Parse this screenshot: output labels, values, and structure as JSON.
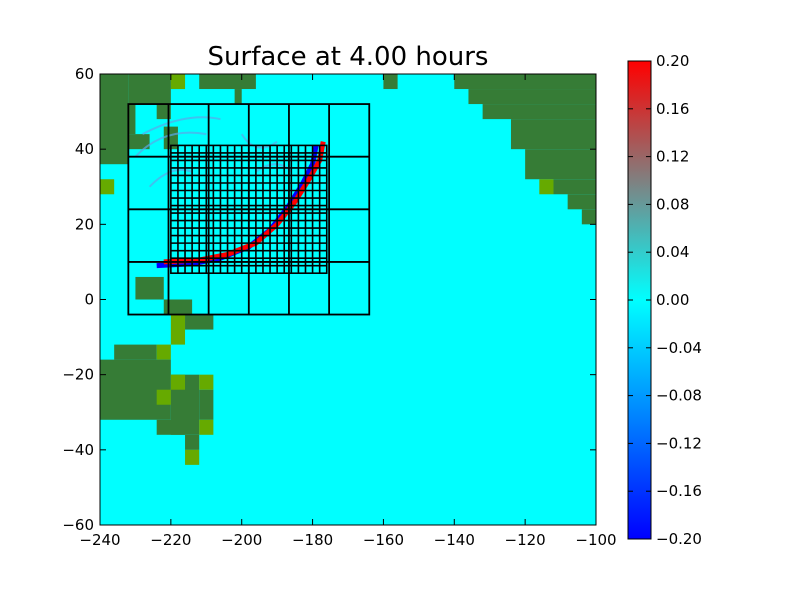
{
  "chart_data": {
    "type": "heatmap",
    "title": "Surface at 4.00 hours",
    "xlabel": "",
    "ylabel": "",
    "xlim": [
      -240,
      -100
    ],
    "ylim": [
      -60,
      60
    ],
    "xticks": [
      -240,
      -220,
      -200,
      -180,
      -160,
      -140,
      -120,
      -100
    ],
    "yticks": [
      -60,
      -40,
      -20,
      0,
      20,
      40,
      60
    ],
    "xtick_labels": [
      "−240",
      "−220",
      "−200",
      "−180",
      "−160",
      "−140",
      "−120",
      "−100"
    ],
    "ytick_labels": [
      "−60",
      "−40",
      "−20",
      "0",
      "20",
      "40",
      "60"
    ],
    "colorbar": {
      "vmin": -0.2,
      "vmax": 0.2,
      "ticks": [
        -0.2,
        -0.16,
        -0.12,
        -0.08,
        -0.04,
        0.0,
        0.04,
        0.08,
        0.12,
        0.16,
        0.2
      ],
      "tick_labels": [
        "−0.20",
        "−0.16",
        "−0.12",
        "−0.08",
        "−0.04",
        "0.00",
        "0.04",
        "0.08",
        "0.12",
        "0.16",
        "0.20"
      ],
      "colors": [
        "#0000ff",
        "#0080ff",
        "#00ffff",
        "#808080",
        "#ff0000"
      ]
    },
    "ocean_color": "#00ffff",
    "land_color": "#367c36",
    "land_highlight_color": "#66aa00",
    "grid": false,
    "refinement_patches": [
      {
        "level": 2,
        "x": [
          -232,
          -164
        ],
        "y": [
          -4,
          52
        ],
        "nx": 6,
        "ny": 4
      },
      {
        "level": 3,
        "x": [
          -220,
          -176
        ],
        "y": [
          7,
          41
        ],
        "nx": 22,
        "ny": 17
      }
    ],
    "wave_front": {
      "positive_crest": [
        [
          -222,
          10
        ],
        [
          -212,
          10.5
        ],
        [
          -204,
          12
        ],
        [
          -196,
          15
        ],
        [
          -190,
          20
        ],
        [
          -185,
          26
        ],
        [
          -181,
          32
        ],
        [
          -178,
          37
        ],
        [
          -177,
          42
        ]
      ],
      "negative_trough": [
        [
          -224,
          9
        ],
        [
          -214,
          9.5
        ],
        [
          -206,
          11
        ],
        [
          -198,
          14
        ],
        [
          -192,
          18.5
        ],
        [
          -187,
          24.5
        ],
        [
          -183,
          30.5
        ],
        [
          -180,
          36
        ],
        [
          -179,
          41
        ]
      ]
    }
  }
}
